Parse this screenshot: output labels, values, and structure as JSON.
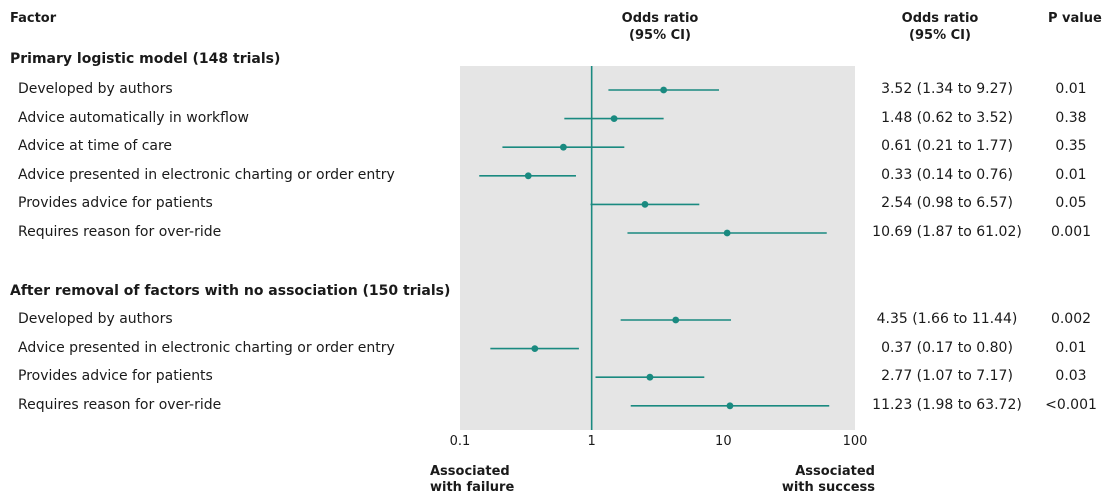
{
  "header": {
    "factor": "Factor",
    "or_plot": [
      "Odds ratio",
      "(95% CI)"
    ],
    "or_text": [
      "Odds ratio",
      "(95% CI)"
    ],
    "p_value": "P value"
  },
  "footer": {
    "left": [
      "Associated",
      "with failure"
    ],
    "right": [
      "Associated",
      "with success"
    ]
  },
  "colors": {
    "accent": "#1a8a80",
    "panel": "#e5e5e5"
  },
  "chart_data": {
    "type": "forest",
    "scale": "log",
    "xlim": [
      0.1,
      100
    ],
    "reference_line": 1,
    "x_ticks": [
      "0.1",
      "1",
      "10",
      "100"
    ],
    "sections": [
      {
        "title": "Primary logistic model (148 trials)",
        "rows": [
          {
            "label": "Developed by authors",
            "or": 3.52,
            "lo": 1.34,
            "hi": 9.27,
            "ci_text": "3.52 (1.34 to 9.27)",
            "p": "0.01"
          },
          {
            "label": "Advice automatically in workflow",
            "or": 1.48,
            "lo": 0.62,
            "hi": 3.52,
            "ci_text": "1.48 (0.62 to 3.52)",
            "p": "0.38"
          },
          {
            "label": "Advice at time of care",
            "or": 0.61,
            "lo": 0.21,
            "hi": 1.77,
            "ci_text": "0.61 (0.21 to 1.77)",
            "p": "0.35"
          },
          {
            "label": "Advice presented in electronic charting or order entry",
            "or": 0.33,
            "lo": 0.14,
            "hi": 0.76,
            "ci_text": "0.33 (0.14 to 0.76)",
            "p": "0.01"
          },
          {
            "label": "Provides advice for patients",
            "or": 2.54,
            "lo": 0.98,
            "hi": 6.57,
            "ci_text": "2.54 (0.98 to 6.57)",
            "p": "0.05"
          },
          {
            "label": "Requires reason for over-ride",
            "or": 10.69,
            "lo": 1.87,
            "hi": 61.02,
            "ci_text": "10.69 (1.87 to 61.02)",
            "p": "0.001"
          }
        ]
      },
      {
        "title": "After removal of factors with no association (150 trials)",
        "rows": [
          {
            "label": "Developed by authors",
            "or": 4.35,
            "lo": 1.66,
            "hi": 11.44,
            "ci_text": "4.35 (1.66 to 11.44)",
            "p": "0.002"
          },
          {
            "label": "Advice presented in electronic charting or order entry",
            "or": 0.37,
            "lo": 0.17,
            "hi": 0.8,
            "ci_text": "0.37 (0.17 to 0.80)",
            "p": "0.01"
          },
          {
            "label": "Provides advice for patients",
            "or": 2.77,
            "lo": 1.07,
            "hi": 7.17,
            "ci_text": "2.77 (1.07 to 7.17)",
            "p": "0.03"
          },
          {
            "label": "Requires reason for over-ride",
            "or": 11.23,
            "lo": 1.98,
            "hi": 63.72,
            "ci_text": "11.23 (1.98 to 63.72)",
            "p": "<0.001"
          }
        ]
      }
    ]
  }
}
